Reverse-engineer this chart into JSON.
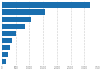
{
  "values": [
    3200,
    1550,
    1050,
    850,
    500,
    350,
    280,
    220,
    160
  ],
  "bar_color": "#1a6faf",
  "background_color": "#ffffff",
  "grid_color": "#cccccc",
  "xlim": [
    0,
    3500
  ],
  "figsize": [
    1.0,
    0.71
  ],
  "dpi": 100
}
